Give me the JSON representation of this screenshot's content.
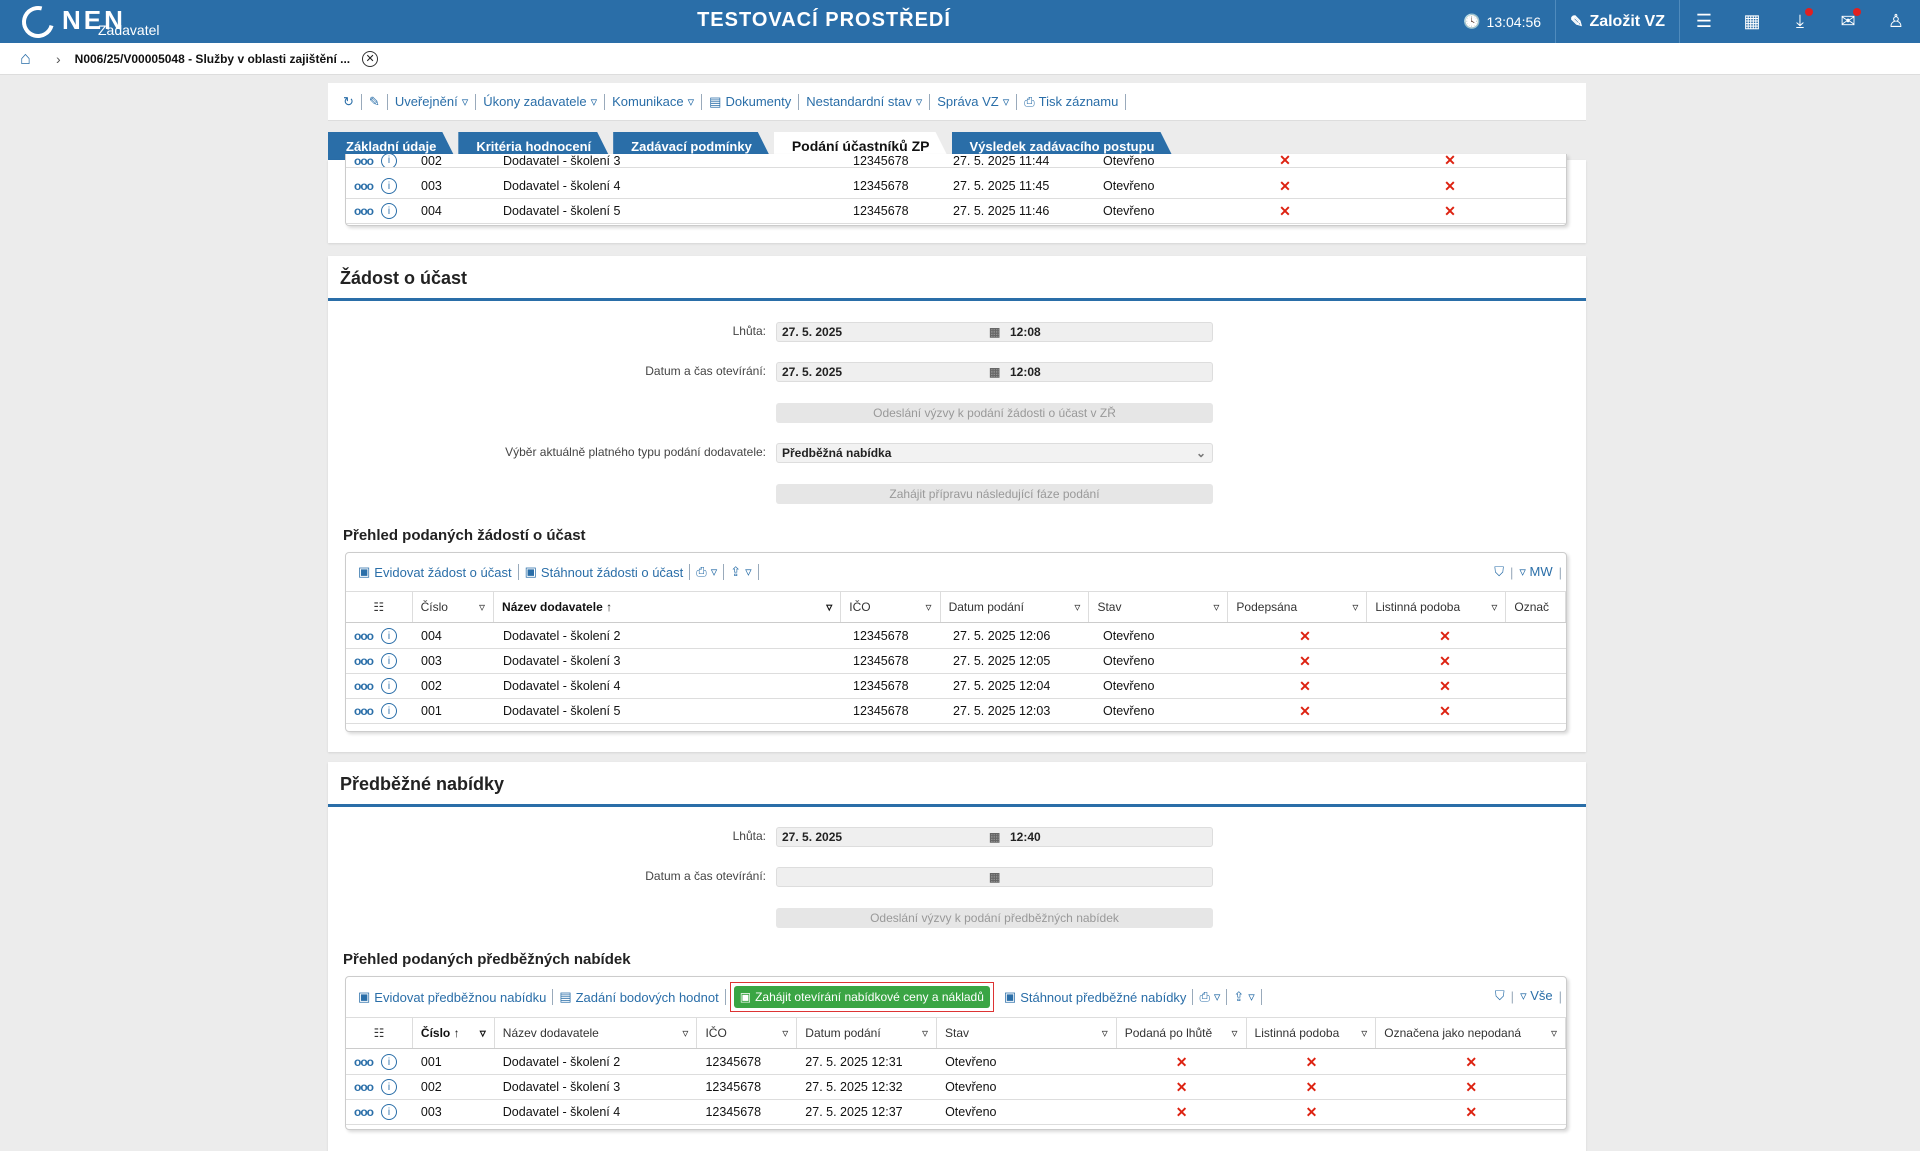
{
  "header": {
    "logo": "NEN",
    "logo_sub": "Zadavatel",
    "env_title": "TESTOVACÍ PROSTŘEDÍ",
    "clock": "13:04:56",
    "create_label": "Založit VZ"
  },
  "breadcrumb": {
    "item": "N006/25/V00005048 - Služby v oblasti zajištění ..."
  },
  "toolbar": {
    "items": [
      "Uveřejnění",
      "Úkony zadavatele",
      "Komunikace",
      "Dokumenty",
      "Nestandardní stav",
      "Správa VZ",
      "Tisk záznamu"
    ]
  },
  "tabs": [
    "Základní údaje",
    "Kritéria hodnocení",
    "Zadávací podmínky",
    "Podání účastníků ZP",
    "Výsledek zadávacího postupu"
  ],
  "top_grid": {
    "rows": [
      {
        "cislo": "002",
        "nazev": "Dodavatel - školení 3",
        "ico": "12345678",
        "datum": "27. 5. 2025 11:44",
        "stav": "Otevřeno"
      },
      {
        "cislo": "003",
        "nazev": "Dodavatel - školení 4",
        "ico": "12345678",
        "datum": "27. 5. 2025 11:45",
        "stav": "Otevřeno"
      },
      {
        "cislo": "004",
        "nazev": "Dodavatel - školení 5",
        "ico": "12345678",
        "datum": "27. 5. 2025 11:46",
        "stav": "Otevřeno"
      }
    ]
  },
  "zadost": {
    "title": "Žádost o účast",
    "lhuta_label": "Lhůta:",
    "lhuta_date": "27. 5. 2025",
    "lhuta_time": "12:08",
    "otevirani_label": "Datum a čas otevírání:",
    "otevirani_date": "27. 5. 2025",
    "otevirani_time": "12:08",
    "btn_odeslani": "Odeslání výzvy k podání žádosti o účast v ZŘ",
    "typ_label": "Výběr aktuálně platného typu podání dodavatele:",
    "typ_value": "Předběžná nabídka",
    "btn_zahajit": "Zahájit přípravu následující fáze podání",
    "overview_title": "Přehled podaných žádostí o účast",
    "tools": [
      "Evidovat žádost o účast",
      "Stáhnout žádosti o účast"
    ],
    "right_label": "MW",
    "columns": [
      "Číslo",
      "Název dodavatele",
      "IČO",
      "Datum podání",
      "Stav",
      "Podepsána",
      "Listinná podoba",
      "Označ"
    ],
    "rows": [
      {
        "cislo": "004",
        "nazev": "Dodavatel - školení 2",
        "ico": "12345678",
        "datum": "27. 5. 2025 12:06",
        "stav": "Otevřeno"
      },
      {
        "cislo": "003",
        "nazev": "Dodavatel - školení 3",
        "ico": "12345678",
        "datum": "27. 5. 2025 12:05",
        "stav": "Otevřeno"
      },
      {
        "cislo": "002",
        "nazev": "Dodavatel - školení 4",
        "ico": "12345678",
        "datum": "27. 5. 2025 12:04",
        "stav": "Otevřeno"
      },
      {
        "cislo": "001",
        "nazev": "Dodavatel - školení 5",
        "ico": "12345678",
        "datum": "27. 5. 2025 12:03",
        "stav": "Otevřeno"
      }
    ]
  },
  "predbezne": {
    "title": "Předběžné nabídky",
    "lhuta_label": "Lhůta:",
    "lhuta_date": "27. 5. 2025",
    "lhuta_time": "12:40",
    "otevirani_label": "Datum a čas otevírání:",
    "btn_odeslani": "Odeslání výzvy k podání předběžných nabídek",
    "overview_title": "Přehled podaných předběžných nabídek",
    "tools": [
      "Evidovat předběžnou nabídku",
      "Zadání bodových hodnot",
      "Zahájit otevírání nabídkové ceny a nákladů",
      "Stáhnout předběžné nabídky"
    ],
    "right_label": "Vše",
    "columns": [
      "Číslo",
      "Název dodavatele",
      "IČO",
      "Datum podání",
      "Stav",
      "Podaná po lhůtě",
      "Listinná podoba",
      "Označena jako nepodaná"
    ],
    "rows": [
      {
        "cislo": "001",
        "nazev": "Dodavatel - školení 2",
        "ico": "12345678",
        "datum": "27. 5. 2025 12:31",
        "stav": "Otevřeno"
      },
      {
        "cislo": "002",
        "nazev": "Dodavatel - školení 3",
        "ico": "12345678",
        "datum": "27. 5. 2025 12:32",
        "stav": "Otevřeno"
      },
      {
        "cislo": "003",
        "nazev": "Dodavatel - školení 4",
        "ico": "12345678",
        "datum": "27. 5. 2025 12:37",
        "stav": "Otevřeno"
      }
    ]
  },
  "icons": {
    "x_mark": "✕"
  }
}
